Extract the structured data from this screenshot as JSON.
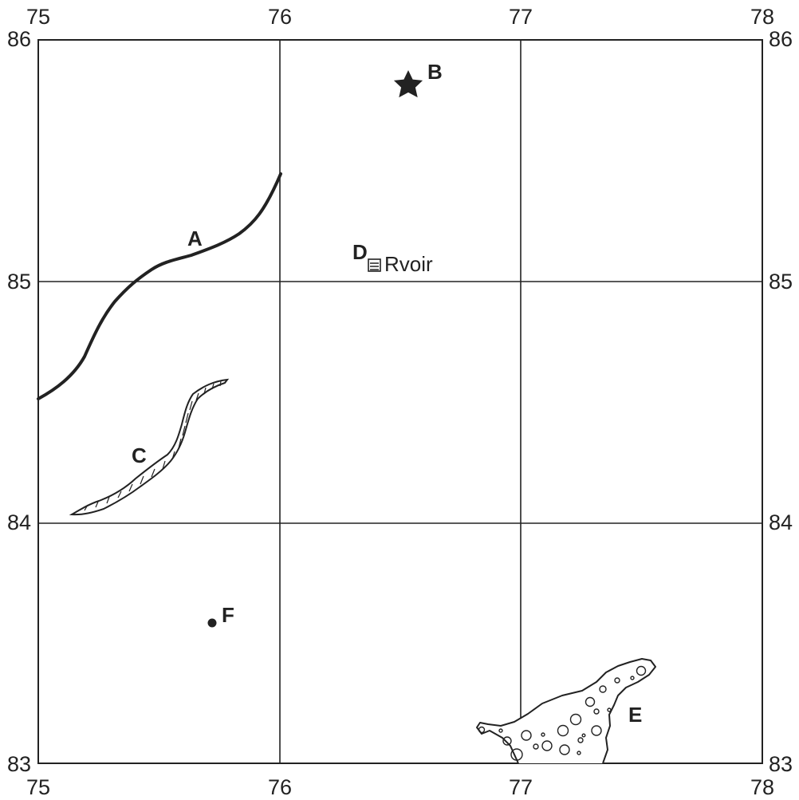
{
  "map": {
    "grid": {
      "x_ticks": [
        "75",
        "76",
        "77",
        "78"
      ],
      "y_ticks": [
        "86",
        "85",
        "84",
        "83"
      ]
    },
    "features": {
      "A": {
        "label": "A",
        "kind": "thick-line"
      },
      "B": {
        "label": "B",
        "kind": "star-symbol"
      },
      "C": {
        "label": "C",
        "kind": "hatched-ridge"
      },
      "D": {
        "label": "D",
        "kind": "reservoir-symbol",
        "text": "Rvoir"
      },
      "E": {
        "label": "E",
        "kind": "circle-stippled-area"
      },
      "F": {
        "label": "F",
        "kind": "dot-symbol"
      }
    },
    "colors": {
      "ink": "#222222",
      "background": "#ffffff"
    }
  }
}
